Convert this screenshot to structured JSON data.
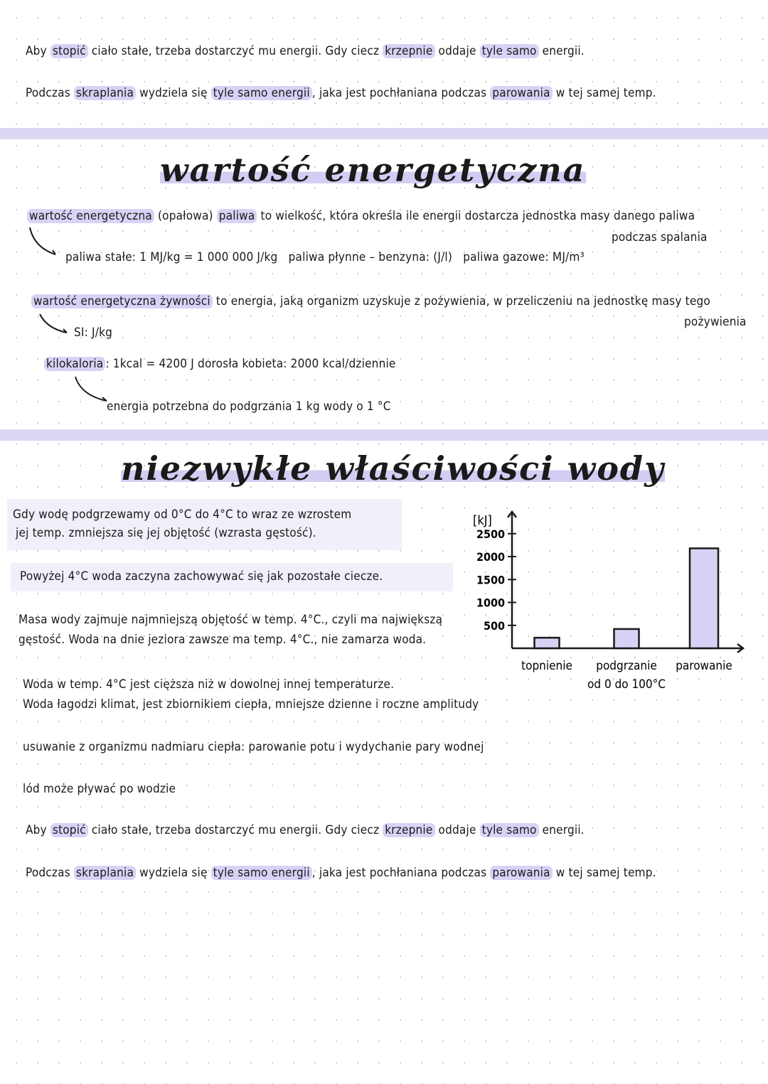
{
  "top_notes": {
    "line1": [
      "Aby ",
      "stopić",
      " ciało stałe, trzeba dostarczyć mu energii. Gdy ciecz ",
      "krzepnie",
      " oddaje ",
      "tyle samo",
      " energii."
    ],
    "line2": [
      "Podczas ",
      "skraplania",
      " wydziela się ",
      "tyle samo energii",
      ", jaka jest pochłaniana podczas ",
      "parowania",
      " w tej samej temp."
    ]
  },
  "section1": {
    "title": "wartość energetyczna",
    "definition": [
      "wartość energetyczna",
      " (opałowa) ",
      "paliwa",
      " to wielkość, która określa ile energii dostarcza jednostka masy danego paliwa"
    ],
    "definition_cont": "podczas spalania",
    "fuels": {
      "solid": "paliwa stałe: 1 MJ/kg = 1 000 000 J/kg",
      "liquid": "paliwa płynne – benzyna: (J/l)",
      "gas": "paliwa gazowe: MJ/m³"
    },
    "food_definition": [
      "wartość energetyczna żywności",
      " to energia, jaką organizm uzyskuje z pożywienia, w przeliczeniu na jednostkę masy tego"
    ],
    "food_definition_cont": "pożywienia",
    "si_unit": "SI: J/kg",
    "kcal": [
      "kilokaloria",
      ": 1kcal = 4200 J   dorosła kobieta: 2000 kcal/dziennie"
    ],
    "kcal_note": "energia potrzebna do podgrzania 1 kg wody o 1 °C"
  },
  "section2": {
    "title": "niezwykłe właściwości wody",
    "box1": [
      "Gdy wodę podgrzewamy od 0°C do 4°C to wraz ze wzrostem",
      "jej temp. zmniejsza się jej objętość (wzrasta gęstość)."
    ],
    "box2": "Powyżej 4°C woda zaczyna zachowywać się jak pozostałe ciecze.",
    "para1": [
      "Masa wody zajmuje najmniejszą objętość w temp. 4°C., czyli ma największą",
      "gęstość. Woda na dnie jeziora zawsze ma temp. 4°C., nie zamarza woda."
    ],
    "para2": [
      "Woda w temp. 4°C jest cięższa niż w dowolnej innej temperaturze.",
      "Woda łagodzi klimat, jest zbiornikiem ciepła, mniejsze dzienne i roczne amplitudy"
    ],
    "para3": "usuwanie z organizmu nadmiaru ciepła: parowanie potu i wydychanie pary wodnej",
    "para4": "lód może pływać po wodzie"
  },
  "bottom_notes": {
    "line1": [
      "Aby ",
      "stopić",
      " ciało stałe, trzeba dostarczyć mu energii. Gdy ciecz ",
      "krzepnie",
      " oddaje ",
      "tyle samo",
      " energii."
    ],
    "line2": [
      "Podczas ",
      "skraplania",
      " wydziela się ",
      "tyle samo energii",
      ", jaka jest pochłaniana podczas ",
      "parowania",
      " w tej samej temp."
    ]
  },
  "chart_data": {
    "type": "bar",
    "ylabel": "[kJ]",
    "categories": [
      "topnienie",
      "podgrzanie od 0 do 100°C",
      "parowanie"
    ],
    "category_lines": [
      [
        "topnienie"
      ],
      [
        "podgrzanie",
        "od 0 do 100°C"
      ],
      [
        "parowanie"
      ]
    ],
    "values": [
      230,
      420,
      2180
    ],
    "yticks": [
      500,
      1000,
      1500,
      2000,
      2500
    ],
    "ylim": [
      0,
      2900
    ],
    "bar_color": "#d6d1f5"
  },
  "colors": {
    "highlight": "#d8d2f6",
    "band": "#dcd8f4"
  }
}
